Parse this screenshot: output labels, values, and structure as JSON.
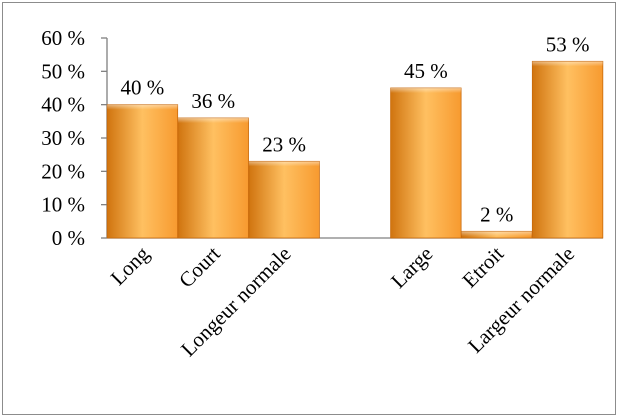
{
  "chart_data": {
    "type": "bar",
    "categories": [
      "Long",
      "Court",
      "Longeur normale",
      "",
      "Large",
      "Etroit",
      "Largeur normale"
    ],
    "values": [
      40,
      36,
      23,
      null,
      45,
      2,
      53
    ],
    "data_labels": [
      "40 %",
      "36 %",
      "23 %",
      "",
      "45 %",
      "2 %",
      "53 %"
    ],
    "y_ticks": [
      "0 %",
      "10 %",
      "20 %",
      "30 %",
      "40 %",
      "50 %",
      "60 %"
    ],
    "ylim": [
      0,
      60
    ],
    "grid": false,
    "legend": "none",
    "colors": {
      "bar_light": "#FFC061",
      "bar_mid": "#F79A2F",
      "bar_dark": "#D0740F",
      "axis": "#808080"
    }
  }
}
